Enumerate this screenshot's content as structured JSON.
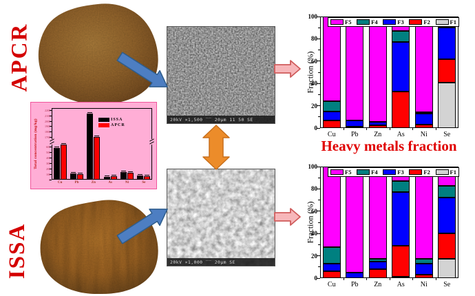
{
  "samples": {
    "apcr_label": "APCR",
    "issa_label": "ISSA"
  },
  "section_title": "Heavy metals fraction",
  "sem_images": {
    "top": {
      "info_bar": "20kV  ×1,500  ‾‾ 20μm   11 50 SE"
    },
    "bottom": {
      "info_bar": "20kV  ×1,000  ‾‾ 20μm   SE"
    }
  },
  "colors": {
    "label_red": "#d40000",
    "title_red": "#e00000",
    "f5_magenta": "#ff00ff",
    "f4_teal": "#008080",
    "f3_blue": "#0000ff",
    "f2_red": "#ff0000",
    "f1_gray": "#d3d3d3",
    "inset_background": "#ffaed6",
    "blue_arrow": "#4d7ec2",
    "orange_arrow": "#ec8c2a",
    "pink_arrow": "#f7b7ba"
  },
  "chart_data": [
    {
      "id": "total-concentration-inset",
      "type": "grouped-bar",
      "ylabel": "Total concentration (mg/kg)",
      "categories": [
        "Cu",
        "Pb",
        "Zn",
        "As",
        "Ni",
        "Se"
      ],
      "series": [
        {
          "name": "ISSA",
          "color": "#000000",
          "values": [
            580,
            110,
            2150,
            55,
            140,
            70
          ]
        },
        {
          "name": "APCR",
          "color": "#ff0000",
          "values": [
            640,
            100,
            1700,
            65,
            125,
            65
          ]
        }
      ],
      "axis_break": true,
      "lower_ylim": [
        0,
        650
      ],
      "upper_ylim": [
        1650,
        2250
      ],
      "lower_yticks": [
        0,
        100,
        200,
        300,
        400,
        500,
        600
      ],
      "upper_yticks": [
        1700,
        1800,
        1900,
        2000,
        2100,
        2200
      ],
      "legend_position": "upper-right",
      "background": "#ffaed6"
    },
    {
      "id": "apcr-fractions",
      "type": "stacked-bar",
      "sample": "APCR",
      "ylabel": "Fraction (%)",
      "ylim": [
        0,
        100
      ],
      "yticks": [
        0,
        20,
        40,
        60,
        80,
        100
      ],
      "categories": [
        "Cu",
        "Pb",
        "Zn",
        "As",
        "Ni",
        "Se"
      ],
      "series": [
        {
          "name": "F1",
          "color": "#d3d3d3",
          "values": [
            0,
            0,
            0,
            0,
            0,
            41
          ]
        },
        {
          "name": "F2",
          "color": "#ff0000",
          "values": [
            7,
            1,
            2.5,
            33,
            3,
            21
          ]
        },
        {
          "name": "F3",
          "color": "#0000ff",
          "values": [
            8,
            6,
            3,
            44,
            10,
            28
          ]
        },
        {
          "name": "F4",
          "color": "#008080",
          "values": [
            9,
            0,
            0,
            10,
            1.5,
            10
          ]
        },
        {
          "name": "F5",
          "color": "#ff00ff",
          "values": [
            76,
            93,
            94.5,
            13,
            85.5,
            0
          ]
        }
      ],
      "legend_order": [
        "F5",
        "F4",
        "F3",
        "F2",
        "F1"
      ],
      "legend_position": "top-inside"
    },
    {
      "id": "issa-fractions",
      "type": "stacked-bar",
      "sample": "ISSA",
      "ylabel": "Fraction (%)",
      "ylim": [
        0,
        100
      ],
      "yticks": [
        0,
        20,
        40,
        60,
        80,
        100
      ],
      "categories": [
        "Cu",
        "Pb",
        "Zn",
        "As",
        "Ni",
        "Se"
      ],
      "series": [
        {
          "name": "F1",
          "color": "#d3d3d3",
          "values": [
            0,
            0,
            0,
            1,
            0,
            17
          ]
        },
        {
          "name": "F2",
          "color": "#ff0000",
          "values": [
            6,
            0,
            8,
            28,
            3,
            23
          ]
        },
        {
          "name": "F3",
          "color": "#0000ff",
          "values": [
            7,
            5,
            7,
            48,
            10,
            32
          ]
        },
        {
          "name": "F4",
          "color": "#008080",
          "values": [
            15,
            0,
            2,
            10,
            4,
            11
          ]
        },
        {
          "name": "F5",
          "color": "#ff00ff",
          "values": [
            72,
            95,
            83,
            13,
            83,
            17
          ]
        }
      ],
      "legend_order": [
        "F5",
        "F4",
        "F3",
        "F2",
        "F1"
      ],
      "legend_position": "top-inside"
    }
  ]
}
